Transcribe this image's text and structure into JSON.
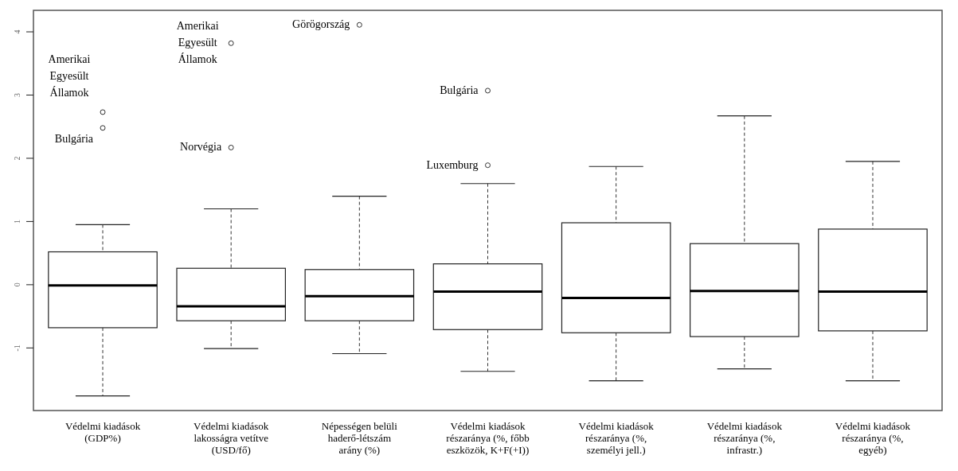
{
  "chart_data": {
    "type": "box",
    "categories": [
      "Védelmi kiadások (GDP%)",
      "Védelmi kiadások lakosságra vetítve (USD/fő)",
      "Népességen belüli haderő-létszám arány (%)",
      "Védelmi kiadások részaránya (%, főbb eszközök, K+F(+I))",
      "Védelmi kiadások részaránya (%, személyi jell.)",
      "Védelmi kiadások részaránya (%, infrastr.)",
      "Védelmi kiadások részaránya (%, egyéb)"
    ],
    "boxes": [
      {
        "low": -1.76,
        "q1": -0.68,
        "median": -0.01,
        "q3": 0.52,
        "high": 0.95,
        "outliers": [
          2.73,
          2.48
        ]
      },
      {
        "low": -1.01,
        "q1": -0.57,
        "median": -0.34,
        "q3": 0.26,
        "high": 1.2,
        "outliers": [
          3.82,
          2.17
        ]
      },
      {
        "low": -1.09,
        "q1": -0.57,
        "median": -0.18,
        "q3": 0.24,
        "high": 1.4,
        "outliers": [
          4.11
        ]
      },
      {
        "low": -1.37,
        "q1": -0.71,
        "median": -0.11,
        "q3": 0.33,
        "high": 1.6,
        "outliers": [
          3.07,
          1.89
        ]
      },
      {
        "low": -1.52,
        "q1": -0.76,
        "median": -0.21,
        "q3": 0.98,
        "high": 1.87
      },
      {
        "low": -1.33,
        "q1": -0.82,
        "median": -0.1,
        "q3": 0.65,
        "high": 2.67
      },
      {
        "low": -1.52,
        "q1": -0.73,
        "median": -0.11,
        "q3": 0.88,
        "high": 1.95
      }
    ],
    "annotations": [
      "Amerikai Egyesült Államok",
      "Bulgária",
      "Amerikai Egyesült Államok",
      "Norvégia",
      "Görögország",
      "Bulgária",
      "Luxemburg"
    ],
    "ylim": [
      -1.99,
      4.34
    ],
    "yticks": [
      -1,
      0,
      1,
      2,
      3,
      4
    ],
    "grid": false
  }
}
